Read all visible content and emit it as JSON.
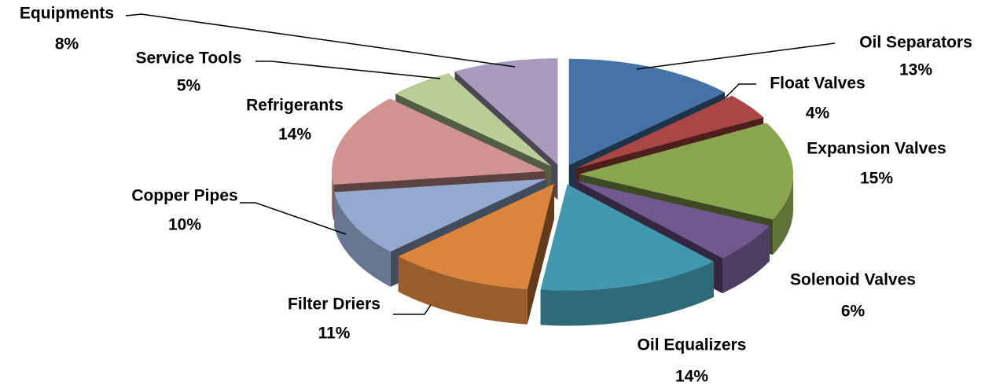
{
  "chart_data": {
    "type": "pie3d",
    "categories": [
      "Oil Separators",
      "Float Valves",
      "Expansion Valves",
      "Solenoid Valves",
      "Oil Equalizers",
      "Filter Driers",
      "Copper Pipes",
      "Refrigerants",
      "Service Tools",
      "Equipments"
    ],
    "values": [
      13,
      4,
      15,
      6,
      14,
      11,
      10,
      14,
      5,
      8
    ],
    "value_labels": [
      "13%",
      "4%",
      "15%",
      "6%",
      "14%",
      "11%",
      "10%",
      "14%",
      "5%",
      "8%"
    ],
    "colors": [
      "#4572a7",
      "#aa4643",
      "#89a54e",
      "#71588f",
      "#4198af",
      "#db843d",
      "#93a9cf",
      "#d19392",
      "#b9cd96",
      "#a99bbd"
    ]
  }
}
